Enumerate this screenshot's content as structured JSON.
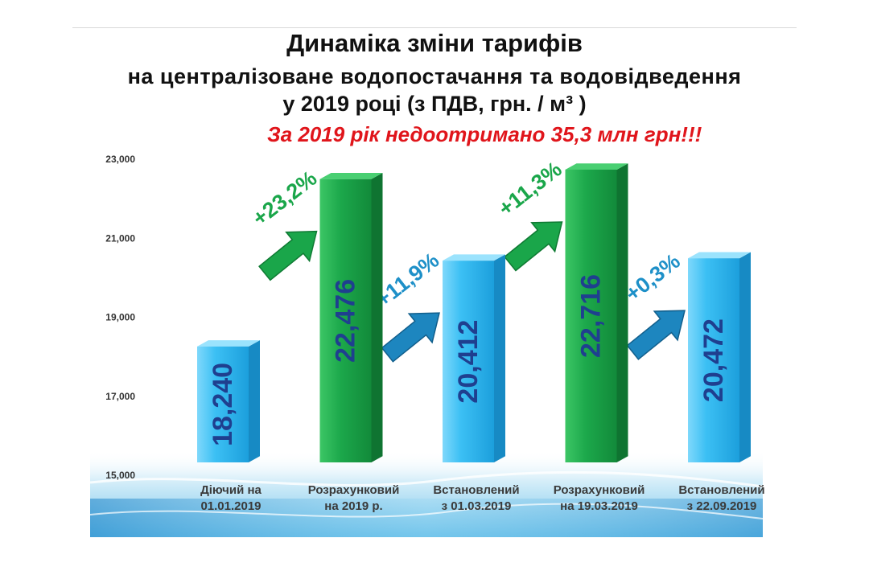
{
  "header": {
    "title_line1": "Динаміка зміни тарифів",
    "title_line2": "на централізоване водопостачання та водовідведення",
    "title_line3": "у 2019 році (з ПДВ, грн. / м³ )",
    "notice": "За  2019 рік недоотримано 35,3 млн грн!!!"
  },
  "chart_data": {
    "type": "bar",
    "ylim": [
      15000,
      23000
    ],
    "yticks": [
      "15,000",
      "17,000",
      "19,000",
      "21,000",
      "23,000"
    ],
    "ytick_values": [
      15000,
      17000,
      19000,
      21000,
      23000
    ],
    "categories": [
      [
        "Діючий на",
        "01.01.2019"
      ],
      [
        "Розрахунковий",
        "на 2019 р."
      ],
      [
        "Встановлений",
        "з 01.03.2019"
      ],
      [
        "Розрахунковий",
        "на 19.03.2019"
      ],
      [
        "Встановлений",
        "з 22.09.2019"
      ]
    ],
    "values": [
      18240,
      22476,
      20412,
      22716,
      20472
    ],
    "value_labels": [
      "18,240",
      "22,476",
      "20,412",
      "22,716",
      "20,472"
    ],
    "bar_kinds": [
      "blue",
      "green",
      "blue",
      "green",
      "blue"
    ],
    "changes": [
      {
        "label": "+23,2%",
        "color": "green"
      },
      {
        "label": "+11,9%",
        "color": "blue"
      },
      {
        "label": "+11,3%",
        "color": "green"
      },
      {
        "label": "+0,3%",
        "color": "blue"
      }
    ],
    "colors": {
      "blue_bar": "#29b6f0",
      "green_bar": "#1aa64a",
      "value_text": "#1f3f8f",
      "green_text": "#1aa64a",
      "blue_text": "#1e90c8",
      "axis_text": "#333333"
    }
  }
}
